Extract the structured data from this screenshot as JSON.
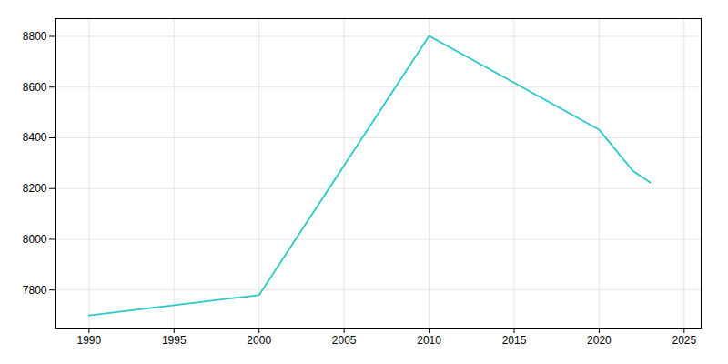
{
  "chart_data": {
    "type": "line",
    "x": [
      1990,
      2000,
      2010,
      2020,
      2022,
      2023
    ],
    "values": [
      7700,
      7780,
      8802,
      8432,
      8269,
      8224
    ],
    "color": "#2ac8c8",
    "xlim": [
      1988,
      2026
    ],
    "ylim": [
      7650,
      8870
    ],
    "xticks": [
      1990,
      1995,
      2000,
      2005,
      2010,
      2015,
      2020,
      2025
    ],
    "yticks": [
      7800,
      8000,
      8200,
      8400,
      8600,
      8800
    ],
    "grid": true
  }
}
